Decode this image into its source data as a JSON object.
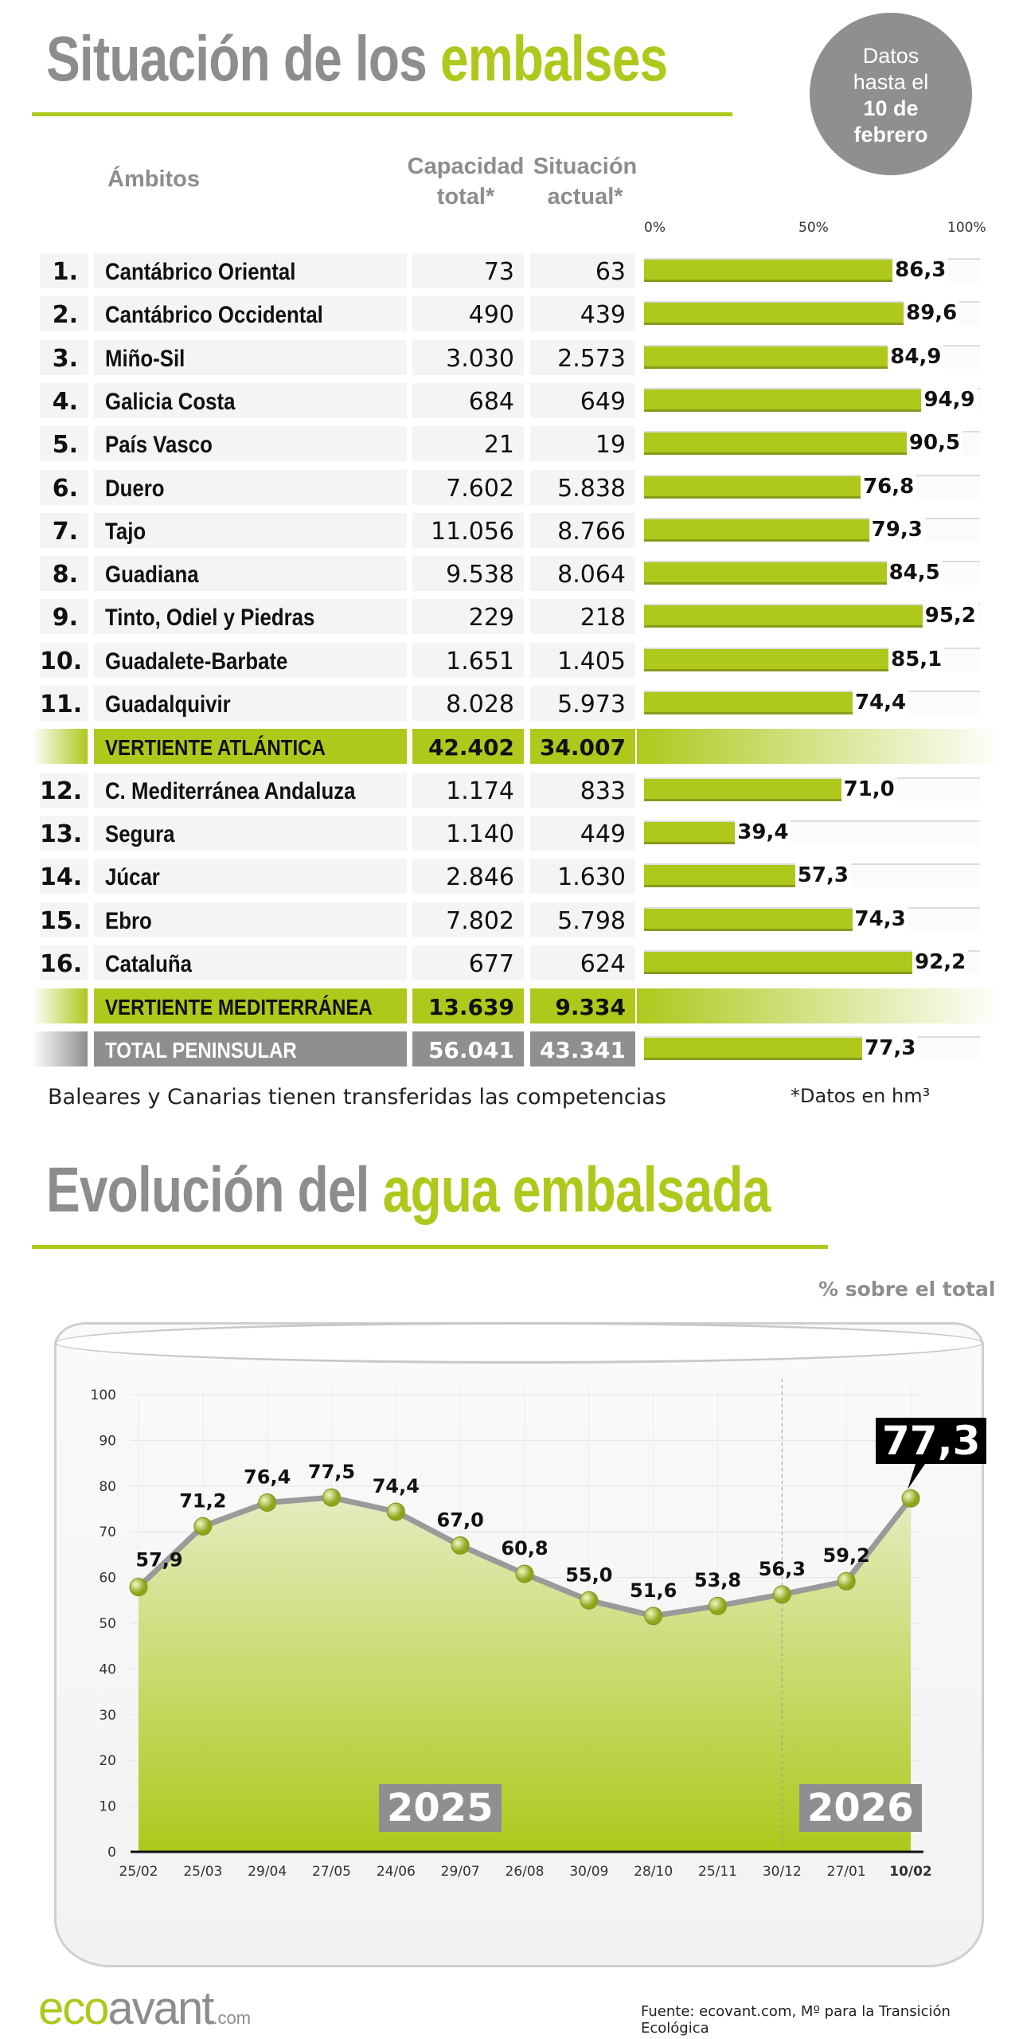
{
  "header": {
    "title_gray": "Situación de los",
    "title_green": "embalses",
    "badge": {
      "line1": "Datos",
      "line2": "hasta el",
      "line3": "10 de",
      "line4": "febrero"
    }
  },
  "table": {
    "col_ambitos": "Ámbitos",
    "col_cap1": "Capacidad",
    "col_cap2": "total*",
    "col_cur1": "Situación",
    "col_cur2": "actual*",
    "scale": [
      "0%",
      "50%",
      "100%"
    ],
    "rows": [
      {
        "n": "1.",
        "name": "Cantábrico Oriental",
        "cap": "73",
        "cur": "63",
        "pct": 86.3,
        "label": "86,3"
      },
      {
        "n": "2.",
        "name": "Cantábrico Occidental",
        "cap": "490",
        "cur": "439",
        "pct": 89.6,
        "label": "89,6"
      },
      {
        "n": "3.",
        "name": "Miño-Sil",
        "cap": "3.030",
        "cur": "2.573",
        "pct": 84.9,
        "label": "84,9"
      },
      {
        "n": "4.",
        "name": "Galicia Costa",
        "cap": "684",
        "cur": "649",
        "pct": 94.9,
        "label": "94,9"
      },
      {
        "n": "5.",
        "name": "País Vasco",
        "cap": "21",
        "cur": "19",
        "pct": 90.5,
        "label": "90,5"
      },
      {
        "n": "6.",
        "name": "Duero",
        "cap": "7.602",
        "cur": "5.838",
        "pct": 76.8,
        "label": "76,8"
      },
      {
        "n": "7.",
        "name": "Tajo",
        "cap": "11.056",
        "cur": "8.766",
        "pct": 79.3,
        "label": "79,3"
      },
      {
        "n": "8.",
        "name": "Guadiana",
        "cap": "9.538",
        "cur": "8.064",
        "pct": 84.5,
        "label": "84,5"
      },
      {
        "n": "9.",
        "name": "Tinto, Odiel y Piedras",
        "cap": "229",
        "cur": "218",
        "pct": 95.2,
        "label": "95,2"
      },
      {
        "n": "10.",
        "name": "Guadalete-Barbate",
        "cap": "1.651",
        "cur": "1.405",
        "pct": 85.1,
        "label": "85,1"
      },
      {
        "n": "11.",
        "name": "Guadalquivir",
        "cap": "8.028",
        "cur": "5.973",
        "pct": 74.4,
        "label": "74,4"
      },
      {
        "type": "sum",
        "name": "VERTIENTE ATLÁNTICA",
        "cap": "42.402",
        "cur": "34.007"
      },
      {
        "n": "12.",
        "name": "C. Mediterránea Andaluza",
        "cap": "1.174",
        "cur": "833",
        "pct": 71.0,
        "label": "71,0"
      },
      {
        "n": "13.",
        "name": "Segura",
        "cap": "1.140",
        "cur": "449",
        "pct": 39.4,
        "label": "39,4"
      },
      {
        "n": "14.",
        "name": "Júcar",
        "cap": "2.846",
        "cur": "1.630",
        "pct": 57.3,
        "label": "57,3"
      },
      {
        "n": "15.",
        "name": "Ebro",
        "cap": "7.802",
        "cur": "5.798",
        "pct": 74.3,
        "label": "74,3"
      },
      {
        "n": "16.",
        "name": "Cataluña",
        "cap": "677",
        "cur": "624",
        "pct": 92.2,
        "label": "92,2"
      },
      {
        "type": "sum",
        "name": "VERTIENTE MEDITERRÁNEA",
        "cap": "13.639",
        "cur": "9.334"
      },
      {
        "type": "tot",
        "name": "TOTAL PENINSULAR",
        "cap": "56.041",
        "cur": "43.341",
        "pct": 77.3,
        "label": "77,3"
      }
    ],
    "note": "Baleares y Canarias tienen transferidas las competencias",
    "units": "*Datos en hm³"
  },
  "section2": {
    "title_gray": "Evolución del",
    "title_green": "agua embalsada",
    "unit_label": "% sobre el total"
  },
  "chart_data": {
    "type": "area",
    "x": [
      "25/02",
      "25/03",
      "29/04",
      "27/05",
      "24/06",
      "29/07",
      "26/08",
      "30/09",
      "28/10",
      "25/11",
      "30/12",
      "27/01",
      "10/02"
    ],
    "values": [
      57.9,
      71.2,
      76.4,
      77.5,
      74.4,
      67.0,
      60.8,
      55.0,
      51.6,
      53.8,
      56.3,
      59.2,
      77.3
    ],
    "labels": [
      "57,9",
      "71,2",
      "76,4",
      "77,5",
      "74,4",
      "67,0",
      "60,8",
      "55,0",
      "51,6",
      "53,8",
      "56,3",
      "59,2",
      "77,3"
    ],
    "ylim": [
      0,
      100
    ],
    "yticks": [
      "0",
      "10",
      "20",
      "30",
      "40",
      "50",
      "60",
      "70",
      "80",
      "90",
      "100"
    ],
    "year_labels": [
      "2025",
      "2026"
    ],
    "highlight": "77,3",
    "colors": {
      "area": "#aec81c",
      "line": "#9a9a9a"
    }
  },
  "footer": {
    "logo_eco": "eco",
    "logo_avant": "avant",
    "logo_com": ".com",
    "source": "Fuente: ecovant.com, Mº para la Transición Ecológica"
  }
}
